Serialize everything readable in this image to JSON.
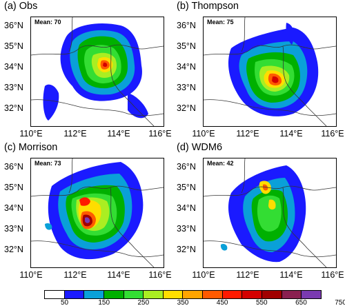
{
  "panels": [
    {
      "title": "(a) Obs",
      "mean": "Mean: 70"
    },
    {
      "title": "(b) Thompson",
      "mean": "Mean: 75"
    },
    {
      "title": "(c) Morrison",
      "mean": "Mean: 73"
    },
    {
      "title": "(d) WDM6",
      "mean": "Mean: 42"
    }
  ],
  "axes": {
    "x_ticks": [
      "110°E",
      "112°E",
      "114°E",
      "116°E"
    ],
    "y_ticks": [
      "36°N",
      "35°N",
      "34°N",
      "33°N",
      "32°N"
    ]
  },
  "colorbar": {
    "colors": [
      "#ffffff",
      "#1a1aff",
      "#0aa0d8",
      "#00b000",
      "#33dd33",
      "#aaee22",
      "#ffdd00",
      "#ffa500",
      "#ff5a00",
      "#ff1a00",
      "#d40000",
      "#a00000",
      "#8a2050",
      "#7a3ab0"
    ],
    "labels": [
      "50",
      "150",
      "250",
      "350",
      "450",
      "550",
      "650",
      "750"
    ]
  }
}
